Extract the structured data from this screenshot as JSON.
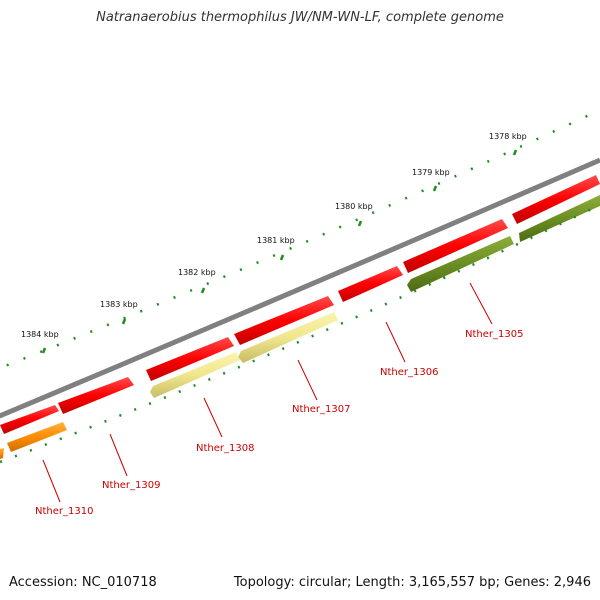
{
  "title": "Natranaerobius thermophilus JW/NM-WN-LF, complete genome",
  "footer": {
    "accession": "Accession: NC_010718",
    "summary": "Topology: circular; Length: 3,165,557 bp; Genes: 2,946"
  },
  "ticks": [
    "1378 kbp",
    "1379 kbp",
    "1380 kbp",
    "1381 kbp",
    "1382 kbp",
    "1383 kbp",
    "1384 kbp"
  ],
  "genes": [
    {
      "label": "Nther_1305",
      "color": "#6b8e23"
    },
    {
      "label": "Nther_1306",
      "color": "#ff0000"
    },
    {
      "label": "Nther_1307",
      "color": "#f0e68c"
    },
    {
      "label": "Nther_1308",
      "color": "#f0e68c"
    },
    {
      "label": "Nther_1309",
      "color": "#ff0000"
    },
    {
      "label": "Nther_1310",
      "color": "#ff8c00"
    }
  ],
  "colors": {
    "backbone": "#808080",
    "cds": "#ff0000",
    "tick": "#228b22",
    "label": "#cc0000"
  }
}
